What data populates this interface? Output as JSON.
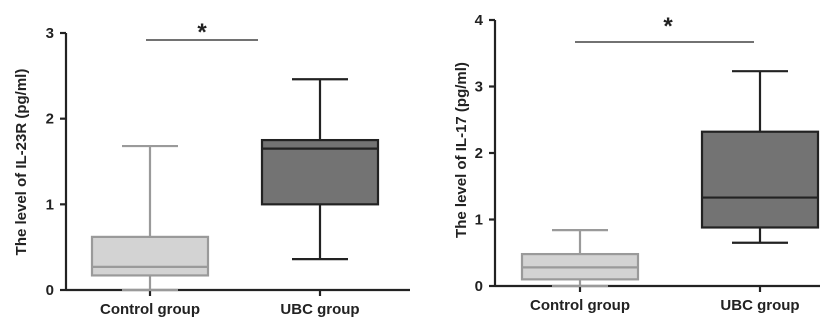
{
  "chart_data": [
    {
      "type": "box",
      "ylabel": "The level of IL-23R (pg/ml)",
      "ylim": [
        0,
        3
      ],
      "yticks": [
        "0",
        "1",
        "2",
        "3"
      ],
      "categories": [
        "Control group",
        "UBC group"
      ],
      "boxes": [
        {
          "name": "Control group",
          "min": 0.0,
          "q1": 0.17,
          "median": 0.27,
          "q3": 0.62,
          "max": 1.68,
          "color": "#d3d3d3",
          "stroke": "#9a9a9a"
        },
        {
          "name": "UBC group",
          "min": 0.36,
          "q1": 1.0,
          "median": 1.65,
          "q3": 1.75,
          "max": 2.46,
          "color": "#737373",
          "stroke": "#222222"
        }
      ],
      "significance": "*"
    },
    {
      "type": "box",
      "ylabel": "The level of IL-17 (pg/ml)",
      "ylim": [
        0,
        4
      ],
      "yticks": [
        "0",
        "1",
        "2",
        "3",
        "4"
      ],
      "categories": [
        "Control group",
        "UBC group"
      ],
      "boxes": [
        {
          "name": "Control group",
          "min": 0.0,
          "q1": 0.1,
          "median": 0.28,
          "q3": 0.48,
          "max": 0.84,
          "color": "#d3d3d3",
          "stroke": "#9a9a9a"
        },
        {
          "name": "UBC group",
          "min": 0.65,
          "q1": 0.88,
          "median": 1.33,
          "q3": 2.32,
          "max": 3.23,
          "color": "#737373",
          "stroke": "#222222"
        }
      ],
      "significance": "*"
    }
  ]
}
